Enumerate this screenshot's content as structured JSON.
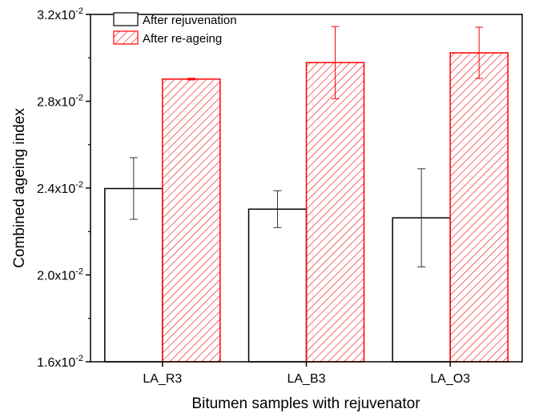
{
  "chart_data": {
    "type": "bar",
    "xlabel": "Bitumen samples with rejuvenator",
    "ylabel": "Combined ageing index",
    "categories": [
      "LA_R3",
      "LA_B3",
      "LA_O3"
    ],
    "ylim": [
      0.016,
      0.032
    ],
    "yticks": [
      {
        "value": 0.016,
        "mantissa": "1.6x10",
        "exp": "-2"
      },
      {
        "value": 0.02,
        "mantissa": "2.0x10",
        "exp": "-2"
      },
      {
        "value": 0.024,
        "mantissa": "2.4x10",
        "exp": "-2"
      },
      {
        "value": 0.028,
        "mantissa": "2.8x10",
        "exp": "-2"
      },
      {
        "value": 0.032,
        "mantissa": "3.2x10",
        "exp": "-2"
      }
    ],
    "series": [
      {
        "name": "After rejuvenation",
        "fill": "none",
        "color": "#000000",
        "values": [
          0.02398,
          0.02303,
          0.02263
        ],
        "errors": [
          0.00142,
          0.00085,
          0.00226
        ]
      },
      {
        "name": "After re-ageing",
        "fill": "hatched",
        "color": "#ff0000",
        "values": [
          0.02902,
          0.02978,
          0.03023
        ],
        "errors": [
          4e-05,
          0.00166,
          0.00118
        ]
      }
    ],
    "legend": "top-left",
    "grid": false
  }
}
